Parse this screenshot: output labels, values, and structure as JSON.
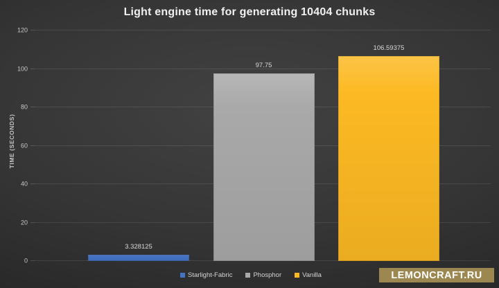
{
  "title": "Light engine time for generating 10404 chunks",
  "watermark_label": "LEMONCRAFT.RU",
  "chart_data": {
    "type": "bar",
    "title": "Light engine time for generating 10404 chunks",
    "categories": [
      "Starlight-Fabric",
      "Phosphor",
      "Vanilla"
    ],
    "values": [
      3.328125,
      97.75,
      106.59375
    ],
    "value_labels": [
      "3.328125",
      "97.75",
      "106.59375"
    ],
    "series_colors": [
      "#4472c4",
      "#a9a9a9",
      "#fcb923"
    ],
    "xlabel": "",
    "ylabel": "TIME (SECONDS)",
    "ylim": [
      0,
      120
    ],
    "yticks": [
      0,
      20,
      40,
      60,
      80,
      100,
      120
    ],
    "grid": true,
    "legend_position": "bottom",
    "theme": "dark"
  },
  "colors": {
    "background_center": "#424242",
    "background_edge": "#1f1f1f",
    "gridline": "rgba(255,255,255,0.10)",
    "title_text": "#f0f0f0",
    "axis_text": "#c6c6c6",
    "value_label_text": "#d8d8d8",
    "legend_text": "#d4d4d4",
    "watermark_background": "#9d8751",
    "watermark_text": "#ffffff"
  }
}
